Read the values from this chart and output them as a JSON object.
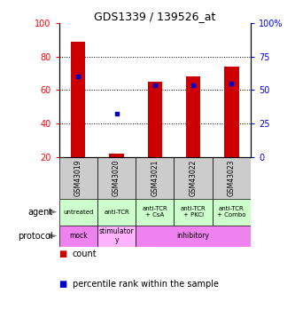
{
  "title": "GDS1339 / 139526_at",
  "samples": [
    "GSM43019",
    "GSM43020",
    "GSM43021",
    "GSM43022",
    "GSM43023"
  ],
  "bar_bottoms": [
    20,
    20,
    20,
    20,
    20
  ],
  "bar_tops": [
    89,
    22,
    65,
    68,
    74
  ],
  "bar_color": "#cc0000",
  "blue_y": [
    68,
    46,
    63,
    63,
    64
  ],
  "blue_color": "#0000cc",
  "ylim_left": [
    20,
    100
  ],
  "ylim_right": [
    0,
    100
  ],
  "yticks_left": [
    20,
    40,
    60,
    80,
    100
  ],
  "yticks_right": [
    0,
    25,
    50,
    75,
    100
  ],
  "ytick_labels_right": [
    "0",
    "25",
    "50",
    "75",
    "100%"
  ],
  "ytick_labels_left": [
    "20",
    "40",
    "60",
    "80",
    "100"
  ],
  "agent_labels": [
    "untreated",
    "anti-TCR",
    "anti-TCR\n+ CsA",
    "anti-TCR\n+ PKCi",
    "anti-TCR\n+ Combo"
  ],
  "protocol_spans": [
    {
      "label": "mock",
      "start": 0,
      "end": 1,
      "color": "#ee82ee"
    },
    {
      "label": "stimulator\ny",
      "start": 1,
      "end": 2,
      "color": "#ffb3ff"
    },
    {
      "label": "inhibitory",
      "start": 2,
      "end": 5,
      "color": "#ee82ee"
    }
  ],
  "sample_bg_color": "#cccccc",
  "agent_row_color": "#ccffcc",
  "protocol_row_color": "#ee82ee",
  "stimulatory_color": "#ffbbff",
  "legend_count_color": "#cc0000",
  "legend_pct_color": "#0000cc"
}
